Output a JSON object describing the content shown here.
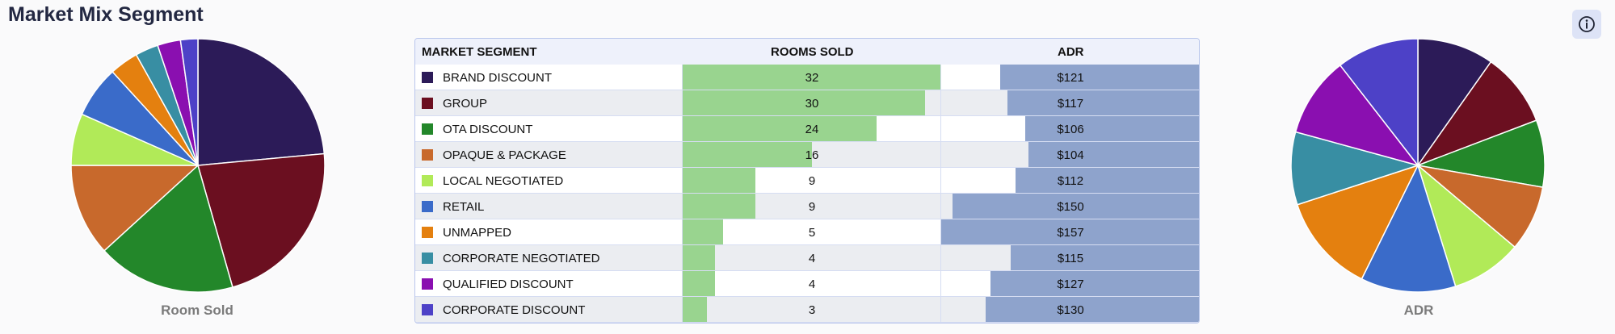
{
  "header": {
    "title": "Market Mix Segment"
  },
  "info_button": {
    "icon": "info-icon"
  },
  "table": {
    "columns": [
      "MARKET SEGMENT",
      "ROOMS SOLD",
      "ADR"
    ]
  },
  "chart_data": [
    {
      "type": "table",
      "columns": [
        "MARKET SEGMENT",
        "ROOMS SOLD",
        "ADR"
      ],
      "rows": [
        {
          "segment": "BRAND DISCOUNT",
          "rooms_sold": 32,
          "adr": "$121",
          "adr_value": 121,
          "color": "#2c1b58"
        },
        {
          "segment": "GROUP",
          "rooms_sold": 30,
          "adr": "$117",
          "adr_value": 117,
          "color": "#6b0f20"
        },
        {
          "segment": "OTA DISCOUNT",
          "rooms_sold": 24,
          "adr": "$106",
          "adr_value": 106,
          "color": "#23872a"
        },
        {
          "segment": "OPAQUE & PACKAGE",
          "rooms_sold": 16,
          "adr": "$104",
          "adr_value": 104,
          "color": "#c8692c"
        },
        {
          "segment": "LOCAL NEGOTIATED",
          "rooms_sold": 9,
          "adr": "$112",
          "adr_value": 112,
          "color": "#b1ea58"
        },
        {
          "segment": "RETAIL",
          "rooms_sold": 9,
          "adr": "$150",
          "adr_value": 150,
          "color": "#3a6bc9"
        },
        {
          "segment": "UNMAPPED",
          "rooms_sold": 5,
          "adr": "$157",
          "adr_value": 157,
          "color": "#e4800f"
        },
        {
          "segment": "CORPORATE NEGOTIATED",
          "rooms_sold": 4,
          "adr": "$115",
          "adr_value": 115,
          "color": "#388ea3"
        },
        {
          "segment": "QUALIFIED DISCOUNT",
          "rooms_sold": 4,
          "adr": "$127",
          "adr_value": 127,
          "color": "#8a0fb0"
        },
        {
          "segment": "CORPORATE DISCOUNT",
          "rooms_sold": 3,
          "adr": "$130",
          "adr_value": 130,
          "color": "#4d41c7"
        }
      ]
    },
    {
      "type": "pie",
      "title": "Room Sold",
      "labels": [
        "BRAND DISCOUNT",
        "GROUP",
        "OTA DISCOUNT",
        "OPAQUE & PACKAGE",
        "LOCAL NEGOTIATED",
        "RETAIL",
        "UNMAPPED",
        "CORPORATE NEGOTIATED",
        "QUALIFIED DISCOUNT",
        "CORPORATE DISCOUNT"
      ],
      "values": [
        32,
        30,
        24,
        16,
        9,
        9,
        5,
        4,
        4,
        3
      ]
    },
    {
      "type": "pie",
      "title": "ADR",
      "labels": [
        "BRAND DISCOUNT",
        "GROUP",
        "OTA DISCOUNT",
        "OPAQUE & PACKAGE",
        "LOCAL NEGOTIATED",
        "RETAIL",
        "UNMAPPED",
        "CORPORATE NEGOTIATED",
        "QUALIFIED DISCOUNT",
        "CORPORATE DISCOUNT"
      ],
      "values": [
        121,
        117,
        106,
        104,
        112,
        150,
        157,
        115,
        127,
        130
      ]
    }
  ]
}
